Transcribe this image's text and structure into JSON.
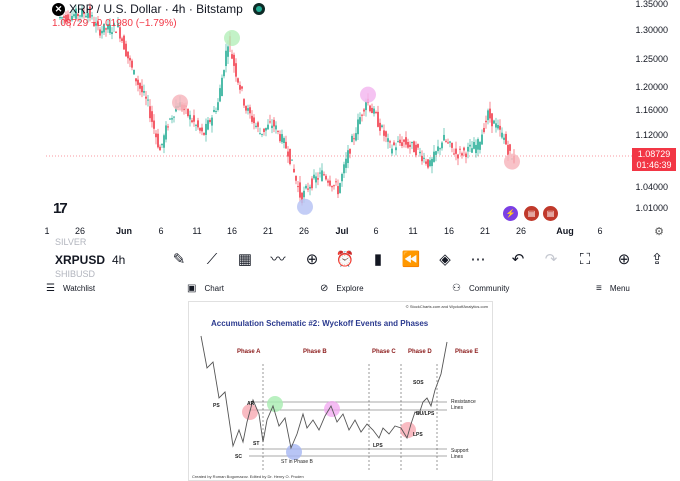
{
  "header": {
    "title": "XRP / U.S. Dollar · 4h · Bitstamp",
    "quote": "1.08729  −0.01980 (−1.79%)"
  },
  "y_axis": [
    "1.35000",
    "1.30000",
    "1.25000",
    "1.20000",
    "1.16000",
    "1.12000",
    "1.08000",
    "1.04000",
    "1.01000"
  ],
  "x_axis": [
    "1",
    "26",
    "Jun",
    "6",
    "11",
    "16",
    "21",
    "26",
    "Jul",
    "6",
    "11",
    "16",
    "21",
    "26",
    "Aug",
    "6"
  ],
  "last_price": {
    "price": "1.08729",
    "countdown": "01:46:39",
    "color": "#f23645"
  },
  "colors": {
    "up": "#22ab94",
    "down": "#f23645"
  },
  "highlights": [
    {
      "color": "#f7b7be",
      "at": "Jun 8"
    },
    {
      "color": "#b9f0bd",
      "at": "Jun 16"
    },
    {
      "color": "#f3b8f0",
      "at": "Jul 5"
    },
    {
      "color": "#b8c4f5",
      "at": "Jun 26"
    },
    {
      "color": "#f7b7be",
      "at": "Jul 25"
    }
  ],
  "toolbar": {
    "ghost_above": "SILVER",
    "symbol": "XRPUSD",
    "interval": "4h",
    "ghost_below": "SHIBUSD",
    "icons": [
      "pencil-icon",
      "indicators-icon",
      "layout-icon",
      "compare-icon",
      "add-icon",
      "alert-icon",
      "candles-icon",
      "replay-icon",
      "layers-icon",
      "more-icon",
      "undo-icon",
      "redo-icon",
      "fullscreen-icon",
      "add-alert-icon",
      "share-icon"
    ]
  },
  "nav": {
    "watchlist": "Watchlist",
    "chart": "Chart",
    "explore": "Explore",
    "community": "Community",
    "menu": "Menu"
  },
  "wyckoff": {
    "copyright": "© StockCharts.com and WyckoffAnalytics.com",
    "title": "Accumulation Schematic #2: Wyckoff Events and Phases",
    "phases": [
      "Phase A",
      "Phase B",
      "Phase C",
      "Phase D",
      "Phase E"
    ],
    "events": {
      "ps": "PS",
      "sc": "SC",
      "ar": "AR",
      "st": "ST",
      "st_b": "ST in Phase B",
      "lps1": "LPS",
      "lps2": "LPS",
      "sos": "SOS",
      "bu": "BU/LPS",
      "resistance": "Resistance Lines",
      "support": "Support Lines"
    },
    "credit": "Created by Roman Bogomazov. Edited by Dr. Henry O. Pruden"
  }
}
